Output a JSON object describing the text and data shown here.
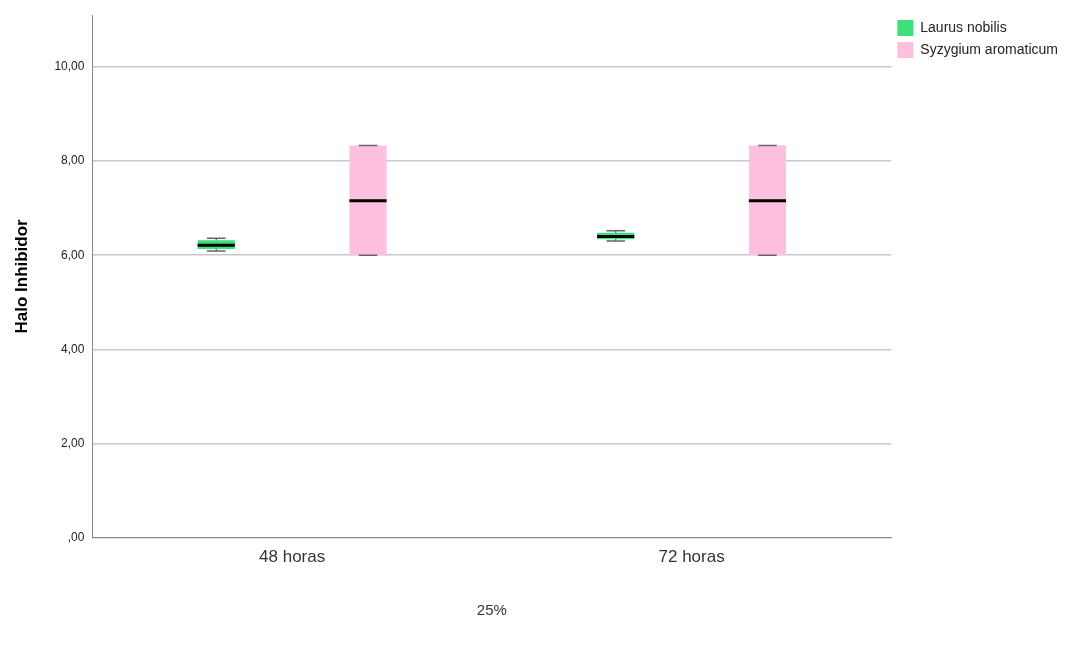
{
  "chart_data": {
    "type": "box",
    "xlabel": "25%",
    "ylabel": "Halo Inhibidor",
    "categories": [
      "48 horas",
      "72 horas"
    ],
    "series": [
      {
        "name": "Laurus nobilis",
        "color": "#3ee07a",
        "boxes": [
          {
            "low": 6.09,
            "q1": 6.13,
            "median": 6.21,
            "q3": 6.32,
            "high": 6.36
          },
          {
            "low": 6.3,
            "q1": 6.34,
            "median": 6.4,
            "q3": 6.48,
            "high": 6.52
          }
        ]
      },
      {
        "name": "Syzygium aromaticum",
        "color": "#ffc0e0",
        "boxes": [
          {
            "low": 6.0,
            "q1": 6.0,
            "median": 7.16,
            "q3": 8.33,
            "high": 8.33
          },
          {
            "low": 6.0,
            "q1": 6.0,
            "median": 7.16,
            "q3": 8.33,
            "high": 8.33
          }
        ]
      }
    ],
    "ylim": [
      0,
      11.1
    ],
    "yticks": [
      {
        "value": 0,
        "label": ",00"
      },
      {
        "value": 2,
        "label": "2,00"
      },
      {
        "value": 4,
        "label": "4,00"
      },
      {
        "value": 6,
        "label": "6,00"
      },
      {
        "value": 8,
        "label": "8,00"
      },
      {
        "value": 10,
        "label": "10,00"
      }
    ],
    "grid": "y",
    "legend": "top right"
  }
}
